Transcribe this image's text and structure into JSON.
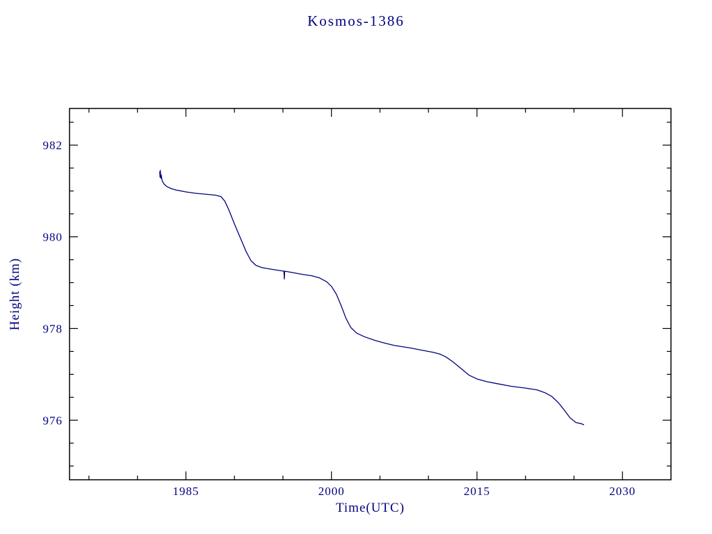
{
  "page": {
    "background": "#ffffff"
  },
  "chart_data": {
    "type": "line",
    "title": "Kosmos-1386",
    "xlabel": "Time(UTC)",
    "ylabel": "Height (km)",
    "xlim": [
      1973,
      2035
    ],
    "ylim": [
      974.7,
      982.8
    ],
    "x_major_ticks": [
      1985,
      2000,
      2015,
      2030
    ],
    "x_tick_labels": [
      "1985",
      "2000",
      "2015",
      "2030"
    ],
    "x_minor_step": 5,
    "y_major_ticks": [
      976,
      978,
      980,
      982
    ],
    "y_tick_labels": [
      "976",
      "978",
      "980",
      "982"
    ],
    "y_minor_step": 0.5,
    "grid": false,
    "legend": "none",
    "frame_color": "#000000",
    "text_color": "#000080",
    "series": [
      {
        "name": "Kosmos-1386 height",
        "color": "#000080",
        "points": [
          [
            1982.3,
            981.42
          ],
          [
            1982.33,
            981.3
          ],
          [
            1982.36,
            981.45
          ],
          [
            1982.4,
            981.28
          ],
          [
            1982.45,
            981.35
          ],
          [
            1982.55,
            981.22
          ],
          [
            1982.75,
            981.15
          ],
          [
            1983.0,
            981.1
          ],
          [
            1983.5,
            981.05
          ],
          [
            1984.0,
            981.02
          ],
          [
            1985.0,
            980.98
          ],
          [
            1986.0,
            980.95
          ],
          [
            1987.0,
            980.93
          ],
          [
            1988.0,
            980.91
          ],
          [
            1988.6,
            980.88
          ],
          [
            1989.0,
            980.78
          ],
          [
            1989.4,
            980.6
          ],
          [
            1990.0,
            980.28
          ],
          [
            1990.6,
            979.98
          ],
          [
            1991.2,
            979.68
          ],
          [
            1991.7,
            979.48
          ],
          [
            1992.2,
            979.38
          ],
          [
            1992.8,
            979.33
          ],
          [
            1993.6,
            979.3
          ],
          [
            1994.5,
            979.27
          ],
          [
            1995.1,
            979.25
          ],
          [
            1995.14,
            979.08
          ],
          [
            1995.18,
            979.25
          ],
          [
            1996.0,
            979.22
          ],
          [
            1997.0,
            979.18
          ],
          [
            1998.0,
            979.15
          ],
          [
            1998.8,
            979.1
          ],
          [
            1999.5,
            979.02
          ],
          [
            2000.0,
            978.92
          ],
          [
            2000.5,
            978.75
          ],
          [
            2001.0,
            978.5
          ],
          [
            2001.5,
            978.22
          ],
          [
            2002.0,
            978.02
          ],
          [
            2002.6,
            977.9
          ],
          [
            2003.4,
            977.82
          ],
          [
            2004.5,
            977.74
          ],
          [
            2005.5,
            977.68
          ],
          [
            2006.5,
            977.63
          ],
          [
            2008.0,
            977.58
          ],
          [
            2009.5,
            977.52
          ],
          [
            2010.5,
            977.48
          ],
          [
            2011.2,
            977.44
          ],
          [
            2011.8,
            977.38
          ],
          [
            2012.6,
            977.26
          ],
          [
            2013.4,
            977.12
          ],
          [
            2014.2,
            976.98
          ],
          [
            2015.0,
            976.9
          ],
          [
            2016.0,
            976.84
          ],
          [
            2017.0,
            976.8
          ],
          [
            2018.5,
            976.74
          ],
          [
            2020.0,
            976.7
          ],
          [
            2021.2,
            976.66
          ],
          [
            2022.0,
            976.6
          ],
          [
            2022.7,
            976.52
          ],
          [
            2023.4,
            976.38
          ],
          [
            2024.0,
            976.22
          ],
          [
            2024.6,
            976.05
          ],
          [
            2025.2,
            975.95
          ],
          [
            2025.8,
            975.92
          ],
          [
            2026.0,
            975.9
          ]
        ]
      }
    ]
  }
}
